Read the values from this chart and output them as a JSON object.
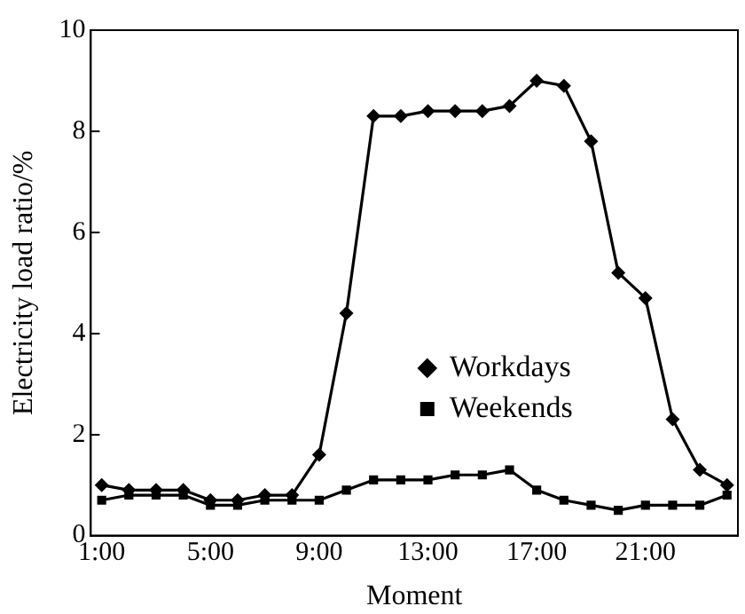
{
  "chart_data": {
    "type": "line",
    "xlabel": "Moment",
    "ylabel": "Electricity load ratio/%",
    "x": [
      1,
      2,
      3,
      4,
      5,
      6,
      7,
      8,
      9,
      10,
      11,
      12,
      13,
      14,
      15,
      16,
      17,
      18,
      19,
      20,
      21,
      22,
      23,
      24
    ],
    "series": [
      {
        "name": "Workdays",
        "color": "#000000",
        "marker": "diamond",
        "values": [
          1.0,
          0.9,
          0.9,
          0.9,
          0.7,
          0.7,
          0.8,
          0.8,
          1.6,
          4.4,
          8.3,
          8.3,
          8.4,
          8.4,
          8.4,
          8.5,
          9.0,
          8.9,
          7.8,
          5.2,
          4.7,
          2.3,
          1.3,
          1.0
        ]
      },
      {
        "name": "Weekends",
        "color": "#000000",
        "marker": "square",
        "values": [
          0.7,
          0.8,
          0.8,
          0.8,
          0.6,
          0.6,
          0.7,
          0.7,
          0.7,
          0.9,
          1.1,
          1.1,
          1.1,
          1.2,
          1.2,
          1.3,
          0.9,
          0.7,
          0.6,
          0.5,
          0.6,
          0.6,
          0.6,
          0.8
        ]
      }
    ],
    "xlim": [
      0.6,
      24.4
    ],
    "xticks": [
      {
        "value": 1,
        "label": "1:00"
      },
      {
        "value": 5,
        "label": "5:00"
      },
      {
        "value": 9,
        "label": "9:00"
      },
      {
        "value": 13,
        "label": "13:00"
      },
      {
        "value": 17,
        "label": "17:00"
      },
      {
        "value": 21,
        "label": "21:00"
      }
    ],
    "ylim": [
      0,
      10
    ],
    "yticks": [
      0,
      2,
      4,
      6,
      8,
      10
    ],
    "grid": false,
    "legend": "center right",
    "line_style": "solid"
  }
}
